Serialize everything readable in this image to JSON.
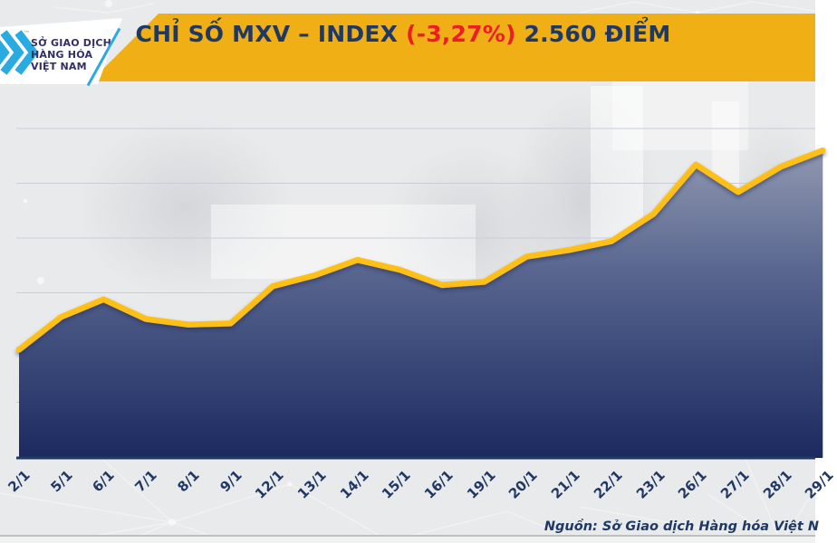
{
  "header": {
    "logo": {
      "line1": "SỞ GIAO DỊCH",
      "line2": "HÀNG HÓA",
      "line3": "VIỆT NAM",
      "trademark": "™",
      "chevron_color": "#29ABE2",
      "text_color": "#332E63"
    },
    "title": {
      "part_main": "CHỈ SỐ MXV – INDEX ",
      "part_change": "(-3,27%)",
      "part_value": " 2.560 ĐIỂM",
      "main_color": "#1F3864",
      "change_color": "#EE1C25",
      "banner_color": "#EFAF15"
    }
  },
  "chart_data": {
    "type": "area",
    "title": "CHỈ SỐ MXV – INDEX",
    "categories": [
      "2/1",
      "5/1",
      "6/1",
      "7/1",
      "8/1",
      "9/1",
      "12/1",
      "13/1",
      "14/1",
      "15/1",
      "16/1",
      "19/1",
      "20/1",
      "21/1",
      "22/1",
      "23/1",
      "26/1",
      "27/1",
      "28/1",
      "29/1"
    ],
    "values": [
      2448,
      2478,
      2494,
      2476,
      2471,
      2472,
      2506,
      2516,
      2530,
      2521,
      2507,
      2510,
      2533,
      2539,
      2547,
      2572,
      2617,
      2592,
      2615,
      2630
    ],
    "ylim": [
      2350,
      2650
    ],
    "gridline_step": 50,
    "grid": true,
    "legend": false,
    "y_axis_labels_clipped": true,
    "y_axis_visible_fragment": "0",
    "line_color": "#FEBF12",
    "area_gradient": [
      "#9AA1B6",
      "#56648E",
      "#1B2960"
    ],
    "gridline_color": "#C9CDD8",
    "axis_color": "#1F3864",
    "tick_label_color": "#1F3864"
  },
  "footer": {
    "source": "Nguồn: Sở Giao dịch Hàng hóa Việt N"
  }
}
